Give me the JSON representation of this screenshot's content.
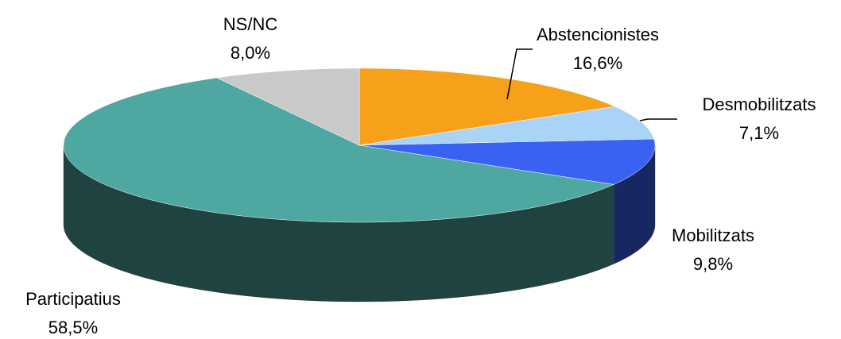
{
  "chart_data": {
    "type": "pie3d",
    "categories": [
      "Abstencionistes",
      "Desmobilitzats",
      "Mobilitzats",
      "Participatius",
      "NS/NC"
    ],
    "values": [
      16.6,
      7.1,
      9.8,
      58.5,
      8.0
    ],
    "value_labels": [
      "16,6%",
      "7,1%",
      "9,8%",
      "58,5%",
      "8,0%"
    ],
    "colors": [
      "#f7a11a",
      "#a9d3f7",
      "#3a62f2",
      "#4ea7a0",
      "#c9c9c9"
    ]
  }
}
